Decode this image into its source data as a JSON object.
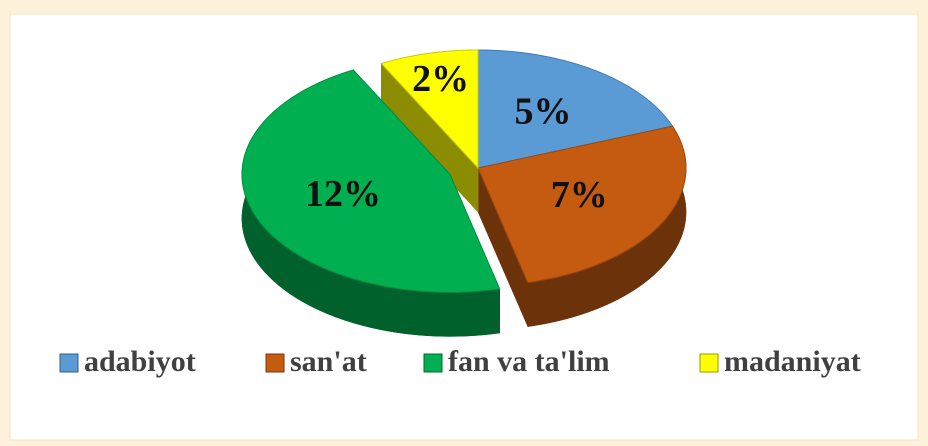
{
  "chart_data": {
    "type": "pie",
    "categories": [
      "adabiyot",
      "san'at",
      "fan va ta'lim",
      "madaniyat"
    ],
    "values": [
      5,
      7,
      12,
      2
    ],
    "value_labels": [
      "5%",
      "7%",
      "12%",
      "2%"
    ],
    "colors": [
      "#5b9bd5",
      "#c55a11",
      "#00b050",
      "#ffff00"
    ],
    "legend": "bottom"
  }
}
